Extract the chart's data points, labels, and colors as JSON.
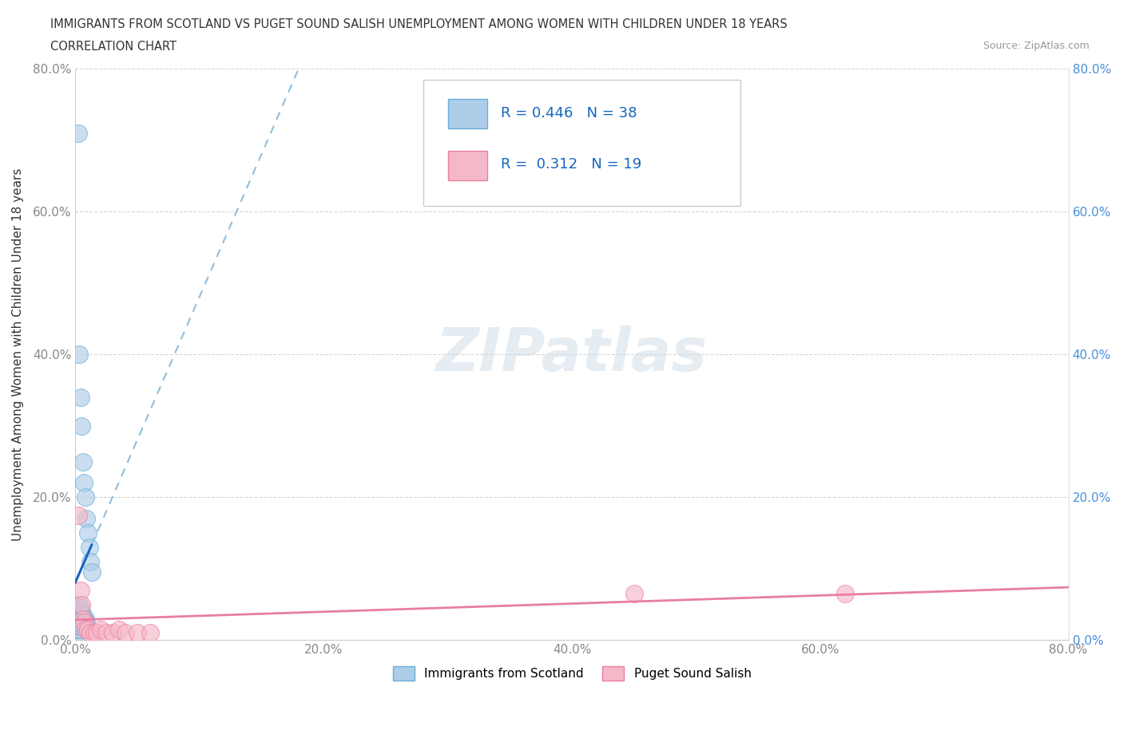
{
  "title": "IMMIGRANTS FROM SCOTLAND VS PUGET SOUND SALISH UNEMPLOYMENT AMONG WOMEN WITH CHILDREN UNDER 18 YEARS",
  "subtitle": "CORRELATION CHART",
  "source": "Source: ZipAtlas.com",
  "ylabel": "Unemployment Among Women with Children Under 18 years",
  "xlim": [
    0,
    0.8
  ],
  "ylim": [
    0,
    0.8
  ],
  "xticks": [
    0.0,
    0.2,
    0.4,
    0.6,
    0.8
  ],
  "yticks": [
    0.0,
    0.2,
    0.4,
    0.6,
    0.8
  ],
  "xticklabels": [
    "0.0%",
    "20.0%",
    "40.0%",
    "60.0%",
    "80.0%"
  ],
  "yticklabels": [
    "0.0%",
    "20.0%",
    "40.0%",
    "60.0%",
    "80.0%"
  ],
  "watermark": "ZIPatlas",
  "scotland_color": "#aecde8",
  "scotland_edge": "#6aaed6",
  "salish_color": "#f5b8c8",
  "salish_edge": "#e87fa0",
  "scotland_R": 0.446,
  "scotland_N": 38,
  "salish_R": 0.312,
  "salish_N": 19,
  "scotland_line_color": "#1565c0",
  "scotland_dash_color": "#90bedd",
  "salish_line_color": "#e87fa0",
  "legend_entries": [
    "Immigrants from Scotland",
    "Puget Sound Salish"
  ],
  "background_color": "#ffffff",
  "grid_color": "#cccccc",
  "left_tick_color": "#888888",
  "right_tick_color": "#4a90d9"
}
